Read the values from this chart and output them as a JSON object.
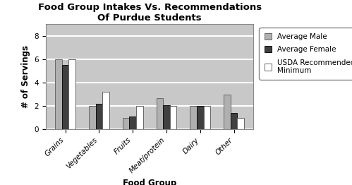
{
  "title": "Food Group Intakes Vs. Recommendations\nOf Purdue Students",
  "xlabel": "Food Group",
  "ylabel": "# of Servings",
  "categories": [
    "Grains",
    "Vegetables",
    "Fruits",
    "Meat/protein",
    "Dairy",
    "Other"
  ],
  "series": {
    "Average Male": [
      6.0,
      2.0,
      1.0,
      2.7,
      2.0,
      3.0
    ],
    "Average Female": [
      5.5,
      2.2,
      1.1,
      2.1,
      2.0,
      1.4
    ],
    "USDA Recommended Minimum": [
      6.0,
      3.2,
      2.0,
      2.0,
      2.0,
      1.0
    ]
  },
  "bar_colors": [
    "#b0b0b0",
    "#404040",
    "#ffffff"
  ],
  "bar_edgecolors": [
    "#666666",
    "#111111",
    "#666666"
  ],
  "ylim": [
    0,
    9
  ],
  "yticks": [
    0,
    2,
    4,
    6,
    8
  ],
  "legend_labels": [
    "Average Male",
    "Average Female",
    "USDA Recommended\nMinimum"
  ],
  "background_color": "#ffffff",
  "plot_bg_color": "#c8c8c8",
  "title_fontsize": 9.5,
  "axis_label_fontsize": 8.5,
  "tick_fontsize": 7.5,
  "legend_fontsize": 7.5,
  "bar_width": 0.2
}
